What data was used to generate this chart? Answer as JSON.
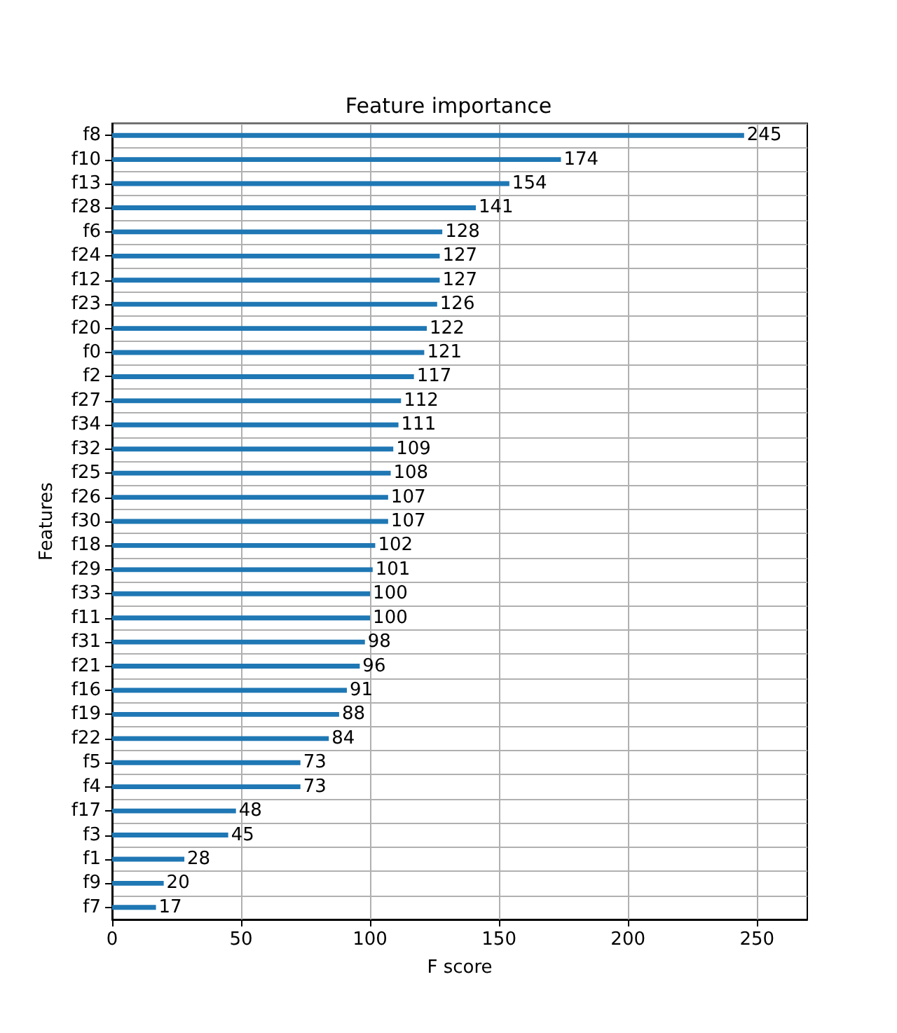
{
  "chart_data": {
    "type": "bar",
    "orientation": "horizontal",
    "title": "Feature importance",
    "xlabel": "F score",
    "ylabel": "Features",
    "categories": [
      "f8",
      "f10",
      "f13",
      "f28",
      "f6",
      "f24",
      "f12",
      "f23",
      "f20",
      "f0",
      "f2",
      "f27",
      "f34",
      "f32",
      "f25",
      "f26",
      "f30",
      "f18",
      "f29",
      "f33",
      "f11",
      "f31",
      "f21",
      "f16",
      "f19",
      "f22",
      "f5",
      "f4",
      "f17",
      "f3",
      "f1",
      "f9",
      "f7"
    ],
    "values": [
      245,
      174,
      154,
      141,
      128,
      127,
      127,
      126,
      122,
      121,
      117,
      112,
      111,
      109,
      108,
      107,
      107,
      102,
      101,
      100,
      100,
      98,
      96,
      91,
      88,
      84,
      73,
      73,
      48,
      45,
      28,
      20,
      17
    ],
    "color": "#1f77b4",
    "xlim": [
      0,
      269.5
    ],
    "xticks": [
      0,
      50,
      100,
      150,
      200,
      250
    ],
    "grid": true,
    "data_labels": true
  }
}
